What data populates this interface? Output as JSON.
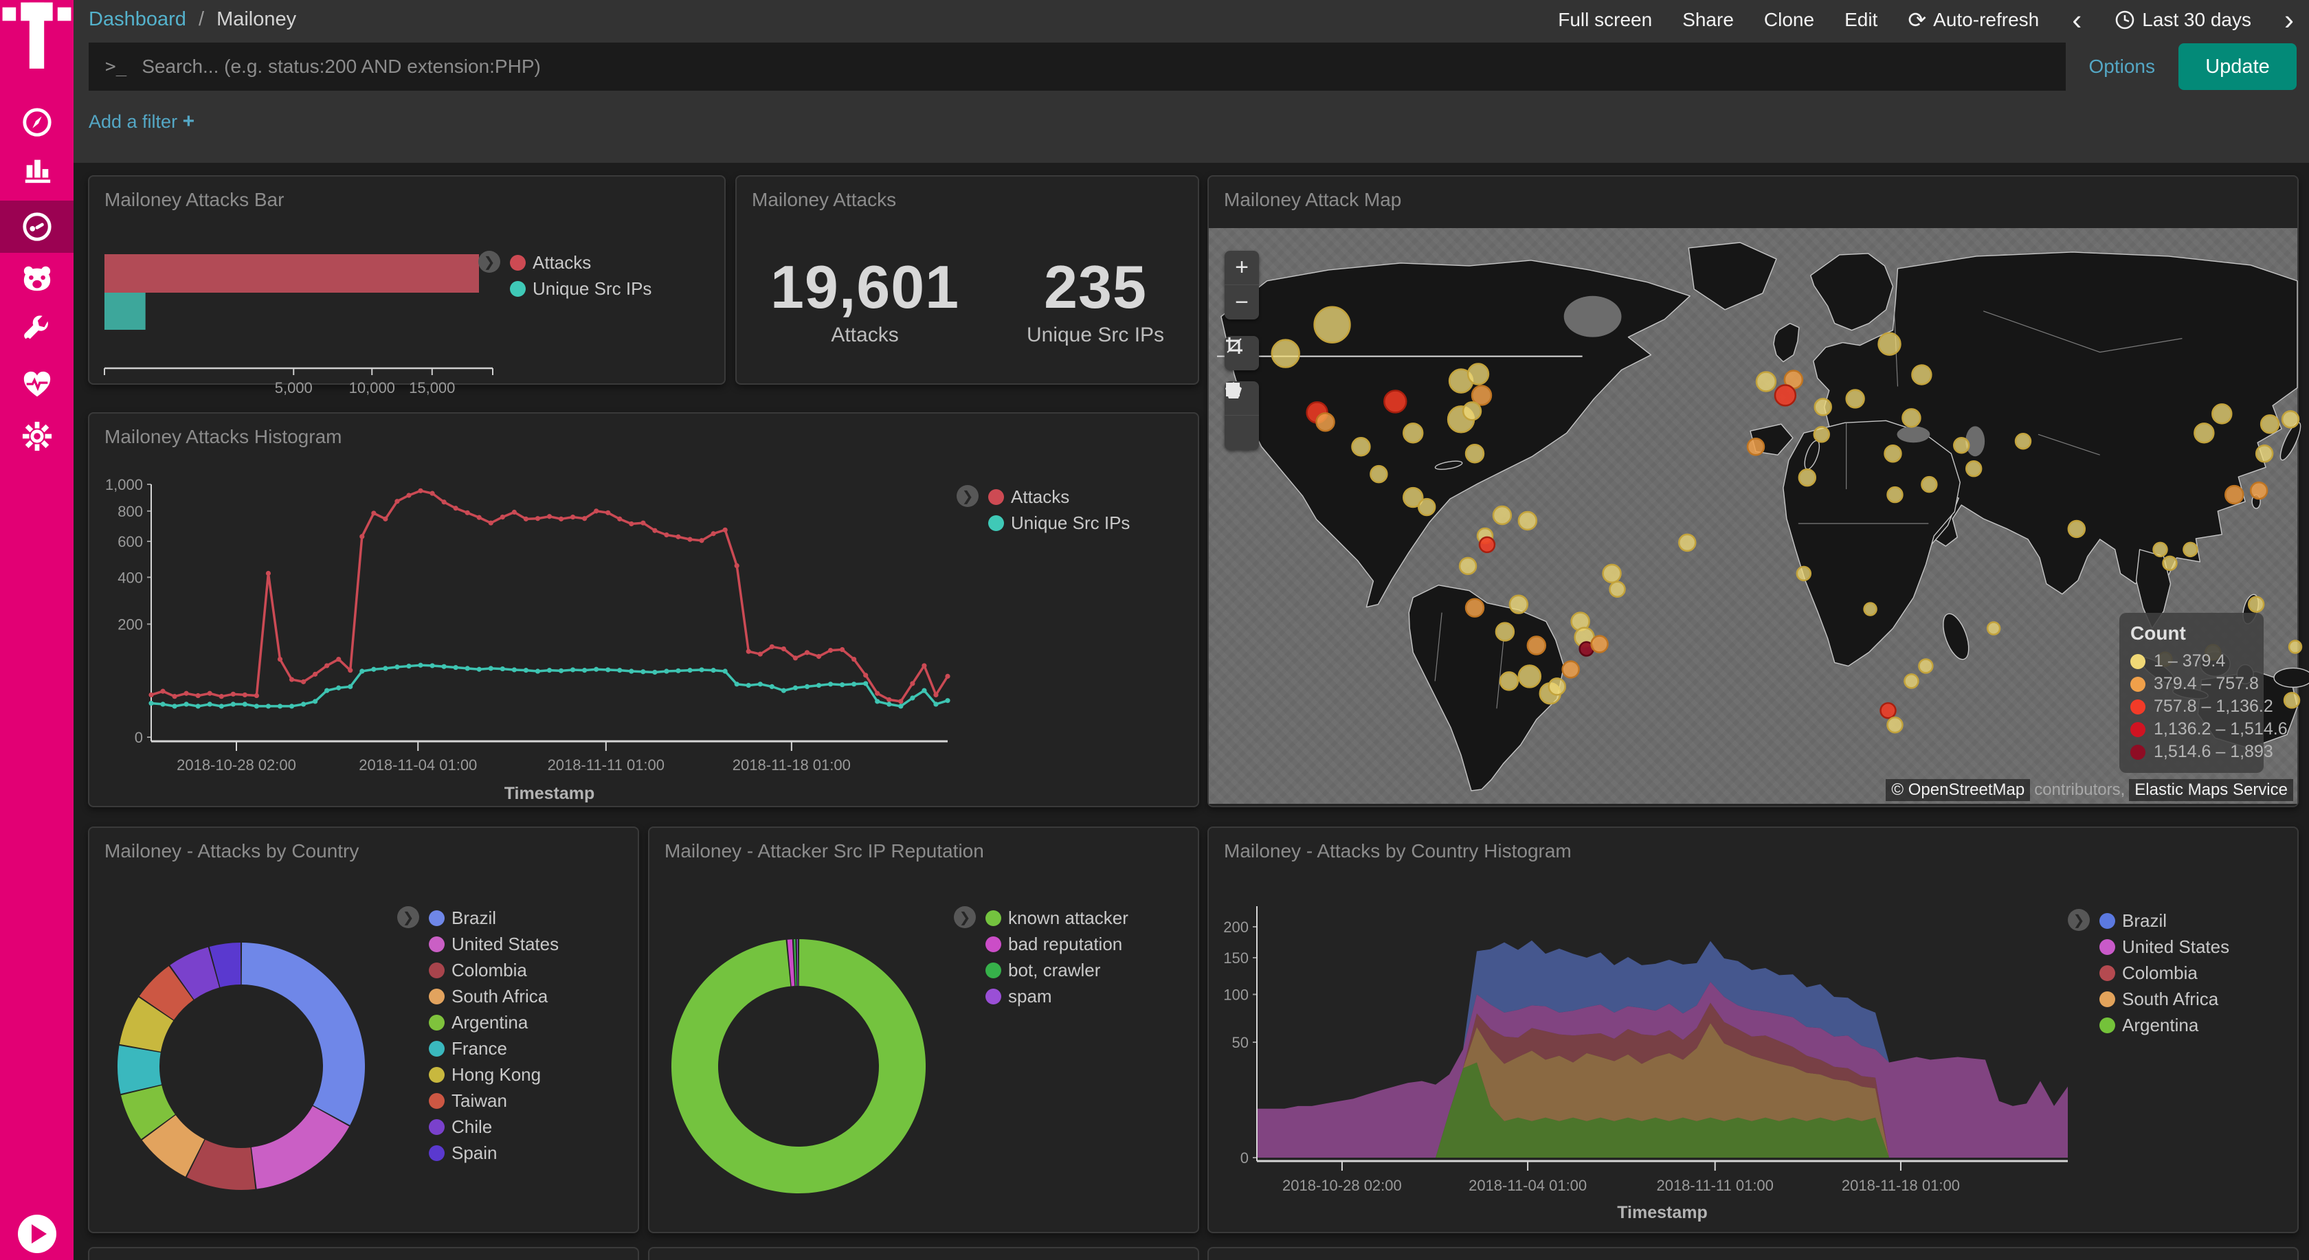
{
  "sidebar": {
    "items": [
      {
        "name": "discover-compass"
      },
      {
        "name": "visualize-barchart"
      },
      {
        "name": "dashboard-gauge",
        "active": true
      },
      {
        "name": "tpot-bear"
      },
      {
        "name": "devtools-wrench"
      },
      {
        "name": "monitoring-heartbeat"
      },
      {
        "name": "management-gear"
      }
    ]
  },
  "topbar": {
    "breadcrumb": {
      "root": "Dashboard",
      "sep": "/",
      "current": "Mailoney"
    },
    "actions": {
      "full_screen": "Full screen",
      "share": "Share",
      "clone": "Clone",
      "edit": "Edit",
      "auto_refresh": "Auto-refresh"
    },
    "time_range": "Last 30 days",
    "prev_arrow": "‹",
    "next_arrow": "›",
    "refresh_glyph": "⟳"
  },
  "search": {
    "prompt": ">_",
    "placeholder": "Search... (e.g. status:200 AND extension:PHP)",
    "options_label": "Options",
    "update_label": "Update"
  },
  "filter_bar": {
    "add_filter_label": "Add a filter",
    "plus": "+"
  },
  "panels": {
    "bar": "Mailoney Attacks Bar",
    "metric": "Mailoney Attacks",
    "map": "Mailoney Attack Map",
    "histogram": "Mailoney Attacks Histogram",
    "country_pie": "Mailoney - Attacks by Country",
    "reputation_pie": "Mailoney - Attacker Src IP Reputation",
    "country_histogram": "Mailoney - Attacks by Country Histogram"
  },
  "metric": {
    "attacks_value": "19,601",
    "attacks_label": "Attacks",
    "ips_value": "235",
    "ips_label": "Unique Src IPs"
  },
  "map": {
    "zoom_in": "+",
    "zoom_out": "−",
    "legend_title": "Count",
    "legend_items": [
      {
        "label": "1 – 379.4",
        "color": "#f0d876"
      },
      {
        "label": "379.4 – 757.8",
        "color": "#f0a04a"
      },
      {
        "label": "757.8 – 1,136.2",
        "color": "#f23b28"
      },
      {
        "label": "1,136.2 – 1,514.6",
        "color": "#d01322"
      },
      {
        "label": "1,514.6 – 1,893",
        "color": "#8e0d24"
      }
    ],
    "attribution": {
      "osm": "© OpenStreetMap",
      "contributors": "contributors,",
      "ems": "Elastic Maps Service"
    },
    "bubbles": [
      [
        180,
        140,
        26,
        0
      ],
      [
        112,
        182,
        20,
        0
      ],
      [
        272,
        252,
        16,
        2
      ],
      [
        158,
        268,
        15,
        2
      ],
      [
        170,
        282,
        13,
        1
      ],
      [
        298,
        298,
        14,
        0
      ],
      [
        222,
        318,
        13,
        0
      ],
      [
        368,
        222,
        17,
        0
      ],
      [
        393,
        212,
        15,
        0
      ],
      [
        398,
        243,
        14,
        1
      ],
      [
        368,
        278,
        19,
        0
      ],
      [
        384,
        266,
        13,
        0
      ],
      [
        388,
        328,
        13,
        0
      ],
      [
        248,
        358,
        12,
        0
      ],
      [
        298,
        392,
        14,
        0
      ],
      [
        318,
        406,
        12,
        0
      ],
      [
        428,
        418,
        13,
        0
      ],
      [
        465,
        426,
        13,
        0
      ],
      [
        403,
        448,
        11,
        0
      ],
      [
        406,
        461,
        11,
        2
      ],
      [
        378,
        492,
        12,
        0
      ],
      [
        388,
        553,
        13,
        1
      ],
      [
        588,
        503,
        13,
        0
      ],
      [
        596,
        526,
        11,
        0
      ],
      [
        452,
        548,
        13,
        0
      ],
      [
        542,
        573,
        13,
        0
      ],
      [
        432,
        588,
        13,
        0
      ],
      [
        548,
        596,
        14,
        0
      ],
      [
        551,
        613,
        10,
        4
      ],
      [
        570,
        606,
        12,
        1
      ],
      [
        478,
        608,
        13,
        1
      ],
      [
        528,
        643,
        12,
        1
      ],
      [
        468,
        653,
        16,
        0
      ],
      [
        438,
        660,
        13,
        0
      ],
      [
        498,
        678,
        15,
        0
      ],
      [
        508,
        668,
        12,
        0
      ],
      [
        698,
        458,
        12,
        0
      ],
      [
        813,
        223,
        14,
        0
      ],
      [
        853,
        220,
        13,
        1
      ],
      [
        841,
        243,
        15,
        2
      ],
      [
        798,
        318,
        12,
        1
      ],
      [
        896,
        260,
        12,
        0
      ],
      [
        943,
        248,
        13,
        0
      ],
      [
        993,
        168,
        16,
        0
      ],
      [
        1040,
        213,
        14,
        0
      ],
      [
        1025,
        276,
        13,
        0
      ],
      [
        894,
        300,
        11,
        0
      ],
      [
        873,
        363,
        12,
        0
      ],
      [
        998,
        328,
        12,
        0
      ],
      [
        1098,
        316,
        11,
        0
      ],
      [
        1188,
        310,
        11,
        0
      ],
      [
        1116,
        350,
        11,
        0
      ],
      [
        1051,
        373,
        11,
        0
      ],
      [
        1001,
        388,
        11,
        0
      ],
      [
        868,
        503,
        10,
        0
      ],
      [
        965,
        555,
        9,
        0
      ],
      [
        1145,
        583,
        9,
        0
      ],
      [
        1046,
        638,
        10,
        0
      ],
      [
        1025,
        660,
        10,
        0
      ],
      [
        991,
        703,
        11,
        2
      ],
      [
        1001,
        724,
        11,
        0
      ],
      [
        1266,
        438,
        12,
        0
      ],
      [
        1388,
        468,
        10,
        0
      ],
      [
        1402,
        488,
        10,
        0
      ],
      [
        1432,
        468,
        10,
        0
      ],
      [
        1478,
        270,
        14,
        0
      ],
      [
        1548,
        285,
        13,
        0
      ],
      [
        1540,
        328,
        12,
        0
      ],
      [
        1452,
        298,
        14,
        0
      ],
      [
        1496,
        388,
        13,
        1
      ],
      [
        1532,
        382,
        12,
        1
      ],
      [
        1528,
        548,
        11,
        0
      ],
      [
        1395,
        628,
        10,
        0
      ],
      [
        1465,
        618,
        11,
        0
      ],
      [
        1578,
        278,
        12,
        0
      ],
      [
        1585,
        610,
        9,
        0
      ],
      [
        1580,
        688,
        11,
        0
      ]
    ],
    "bubble_tiers": [
      {
        "fill": "rgba(238,216,121,0.78)",
        "stroke": "#c3a33c"
      },
      {
        "fill": "rgba(240,160,74,0.85)",
        "stroke": "#c07522"
      },
      {
        "fill": "rgba(240,59,36,0.88)",
        "stroke": "#a81f0e"
      },
      {
        "fill": "rgba(207,20,34,0.90)",
        "stroke": "#8e0d18"
      },
      {
        "fill": "rgba(142,13,36,0.92)",
        "stroke": "#5f0614"
      }
    ]
  },
  "chart_data": [
    {
      "id": "attacks_bar",
      "type": "bar",
      "orientation": "horizontal",
      "scale_x": "sqrt",
      "x_ticks": [
        5000,
        10000,
        15000
      ],
      "x_tick_labels": [
        "5,000",
        "10,000",
        "15,000"
      ],
      "x_max": 19601,
      "series": [
        {
          "name": "Attacks",
          "value": 19601,
          "color": "#b24b56"
        },
        {
          "name": "Unique Src IPs",
          "value": 235,
          "color": "#3da79b"
        }
      ],
      "legend": [
        {
          "label": "Attacks",
          "color": "#cd4a53"
        },
        {
          "label": "Unique Src IPs",
          "color": "#3fc9b7"
        }
      ]
    },
    {
      "id": "attacks_histogram",
      "type": "line",
      "scale_y": "sqrt",
      "title": "Mailoney Attacks Histogram",
      "xlabel": "Timestamp",
      "ylim": [
        0,
        1000
      ],
      "y_ticks": [
        0,
        200,
        400,
        600,
        800,
        1000
      ],
      "y_tick_labels": [
        "0",
        "200",
        "400",
        "600",
        "800",
        "1,000"
      ],
      "x_tick_labels": [
        "2018-10-28 02:00",
        "2018-11-04 01:00",
        "2018-11-11 01:00",
        "2018-11-18 01:00"
      ],
      "series": [
        {
          "name": "Attacks",
          "color": "#cb4a54",
          "values": [
            28,
            33,
            26,
            30,
            27,
            30,
            26,
            29,
            28,
            27,
            420,
            95,
            52,
            48,
            62,
            80,
            95,
            70,
            630,
            785,
            745,
            870,
            915,
            950,
            930,
            865,
            820,
            788,
            755,
            718,
            758,
            792,
            745,
            748,
            762,
            745,
            758,
            748,
            800,
            788,
            745,
            712,
            718,
            668,
            640,
            628,
            612,
            605,
            648,
            672,
            460,
            115,
            108,
            128,
            122,
            98,
            112,
            102,
            118,
            120,
            95,
            60,
            30,
            22,
            20,
            45,
            80,
            28,
            58
          ]
        },
        {
          "name": "Unique Src IPs",
          "color": "#3ec4b2",
          "values": [
            18,
            17,
            15,
            17,
            15,
            17,
            15,
            17,
            17,
            15,
            15,
            15,
            15,
            17,
            20,
            34,
            38,
            40,
            68,
            72,
            74,
            77,
            79,
            81,
            80,
            78,
            76,
            74,
            72,
            74,
            73,
            71,
            70,
            68,
            70,
            69,
            71,
            70,
            72,
            71,
            70,
            68,
            67,
            66,
            68,
            69,
            70,
            71,
            70,
            68,
            44,
            42,
            44,
            40,
            34,
            38,
            40,
            42,
            44,
            43,
            44,
            45,
            20,
            17,
            15,
            24,
            34,
            17,
            21
          ]
        }
      ],
      "legend": [
        {
          "label": "Attacks",
          "color": "#cd4a53"
        },
        {
          "label": "Unique Src IPs",
          "color": "#3fc9b7"
        }
      ]
    },
    {
      "id": "country_pie",
      "type": "pie",
      "donut": true,
      "slices": [
        {
          "label": "Brazil",
          "value": 32.8,
          "color": "#6f87e8"
        },
        {
          "label": "United States",
          "value": 15.0,
          "color": "#ca5fc5"
        },
        {
          "label": "Colombia",
          "value": 9.2,
          "color": "#a8444c"
        },
        {
          "label": "South Africa",
          "value": 7.5,
          "color": "#e2a35e"
        },
        {
          "label": "Argentina",
          "value": 6.4,
          "color": "#7fc23c"
        },
        {
          "label": "France",
          "value": 6.4,
          "color": "#3ab8be"
        },
        {
          "label": "Hong Kong",
          "value": 6.7,
          "color": "#c8b83e"
        },
        {
          "label": "Taiwan",
          "value": 5.6,
          "color": "#cc5743"
        },
        {
          "label": "Chile",
          "value": 5.6,
          "color": "#7a41cc"
        },
        {
          "label": "Spain",
          "value": 4.2,
          "color": "#5a39cf"
        }
      ]
    },
    {
      "id": "reputation_pie",
      "type": "pie",
      "donut": true,
      "slices": [
        {
          "label": "known attacker",
          "value": 985,
          "color": "#74c33f"
        },
        {
          "label": "bad reputation",
          "value": 8,
          "color": "#cb4dc7"
        },
        {
          "label": "bot, crawler",
          "value": 4,
          "color": "#36b14a"
        },
        {
          "label": "spam",
          "value": 3,
          "color": "#9a4fd6"
        }
      ]
    },
    {
      "id": "country_histogram",
      "type": "area",
      "stacked": true,
      "scale_y": "sqrt",
      "xlabel": "Timestamp",
      "ylim": [
        0,
        200
      ],
      "y_ticks": [
        0,
        50,
        100,
        150,
        200
      ],
      "y_tick_labels": [
        "0",
        "50",
        "100",
        "150",
        "200"
      ],
      "x_tick_labels": [
        "2018-10-28 02:00",
        "2018-11-04 01:00",
        "2018-11-11 01:00",
        "2018-11-18 01:00"
      ],
      "series": [
        {
          "name": "Argentina",
          "color": "#6fba33",
          "opacity": 0.55,
          "values": [
            0,
            0,
            0,
            0,
            0,
            0,
            0,
            0,
            0,
            0,
            0,
            0,
            0,
            0,
            8,
            30,
            34,
            10,
            5,
            6,
            5,
            6,
            5,
            6,
            5,
            6,
            5,
            6,
            5,
            6,
            5,
            6,
            5,
            6,
            5,
            6,
            5,
            6,
            5,
            6,
            5,
            6,
            5,
            6,
            5,
            6,
            0,
            0,
            0,
            0,
            0,
            0,
            0,
            0,
            0,
            0,
            0,
            0,
            0,
            0
          ]
        },
        {
          "name": "South Africa",
          "color": "#e0a45c",
          "opacity": 0.55,
          "values": [
            0,
            0,
            0,
            0,
            0,
            0,
            0,
            0,
            0,
            0,
            0,
            0,
            0,
            0,
            0,
            0,
            30,
            34,
            28,
            32,
            38,
            30,
            34,
            28,
            36,
            32,
            30,
            34,
            28,
            32,
            36,
            30,
            40,
            62,
            44,
            38,
            34,
            30,
            28,
            25,
            22,
            20,
            18,
            16,
            14,
            12,
            0,
            0,
            0,
            0,
            0,
            0,
            0,
            0,
            0,
            0,
            0,
            0,
            0,
            0
          ]
        },
        {
          "name": "Colombia",
          "color": "#c05a62",
          "opacity": 0.55,
          "values": [
            0,
            0,
            0,
            0,
            0,
            0,
            0,
            0,
            0,
            0,
            0,
            0,
            0,
            0,
            0,
            0,
            14,
            18,
            22,
            16,
            20,
            24,
            18,
            22,
            16,
            20,
            18,
            22,
            24,
            18,
            20,
            16,
            18,
            22,
            20,
            18,
            16,
            20,
            18,
            15,
            12,
            10,
            8,
            8,
            6,
            6,
            0,
            0,
            0,
            0,
            0,
            0,
            0,
            0,
            0,
            0,
            0,
            0,
            0,
            0
          ]
        },
        {
          "name": "United States",
          "color": "#c05ac0",
          "opacity": 0.6,
          "values": [
            9,
            9,
            9,
            10,
            10,
            11,
            12,
            13,
            15,
            17,
            19,
            21,
            22,
            20,
            18,
            14,
            22,
            26,
            24,
            28,
            24,
            26,
            22,
            25,
            28,
            30,
            26,
            24,
            27,
            25,
            28,
            26,
            24,
            26,
            28,
            25,
            27,
            24,
            26,
            28,
            25,
            27,
            24,
            26,
            22,
            20,
            34,
            36,
            38,
            36,
            37,
            38,
            37,
            36,
            12,
            10,
            11,
            22,
            10,
            19
          ]
        },
        {
          "name": "Brazil",
          "color": "#5b79d6",
          "opacity": 0.6,
          "values": [
            0,
            0,
            0,
            0,
            0,
            0,
            0,
            0,
            0,
            0,
            0,
            0,
            0,
            0,
            0,
            0,
            60,
            75,
            95,
            80,
            90,
            70,
            85,
            75,
            65,
            70,
            60,
            65,
            55,
            60,
            58,
            62,
            55,
            60,
            52,
            58,
            50,
            55,
            48,
            52,
            45,
            50,
            42,
            40,
            38,
            35,
            0,
            0,
            0,
            0,
            0,
            0,
            0,
            0,
            0,
            0,
            0,
            0,
            0,
            0
          ]
        }
      ],
      "legend": [
        {
          "label": "Brazil",
          "color": "#5b79e0"
        },
        {
          "label": "United States",
          "color": "#c95ac9"
        },
        {
          "label": "Colombia",
          "color": "#b44a50"
        },
        {
          "label": "South Africa",
          "color": "#e2a35b"
        },
        {
          "label": "Argentina",
          "color": "#74c23a"
        }
      ]
    }
  ]
}
